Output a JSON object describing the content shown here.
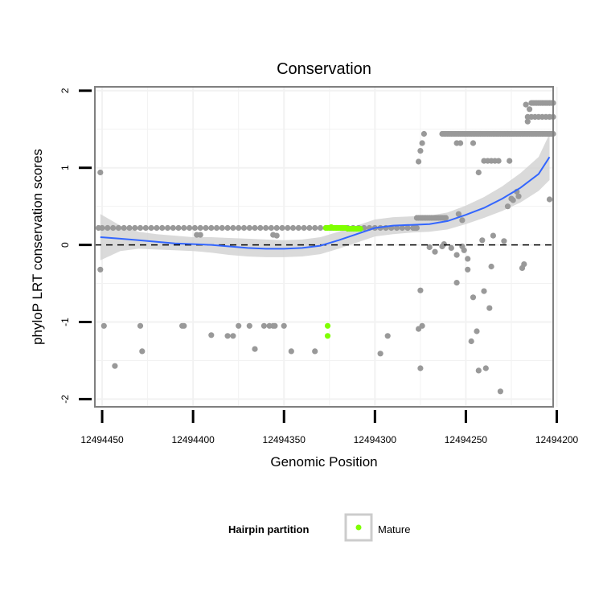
{
  "chart_data": {
    "type": "scatter",
    "title": "Conservation",
    "xlabel": "Genomic Position",
    "ylabel": "phyloP LRT conservation scores",
    "x_reversed": true,
    "xlim": [
      12494454,
      12494202
    ],
    "ylim": [
      -2.1,
      2.05
    ],
    "x_ticks": [
      12494450,
      12494400,
      12494350,
      12494300,
      12494250,
      12494200
    ],
    "x_tick_labels": [
      "12494450",
      "12494400",
      "12494350",
      "12494300",
      "12494250",
      "12494200"
    ],
    "y_ticks": [
      -2,
      -1,
      0,
      1,
      2
    ],
    "y_tick_labels": [
      "-2",
      "-1",
      "0",
      "1",
      "2"
    ],
    "grid": true,
    "reference_line": {
      "y": 0,
      "style": "dashed"
    },
    "legend": {
      "title": "Hairpin partition",
      "position": "bottom",
      "entries": [
        {
          "label": "Mature",
          "color": "#7fff00"
        }
      ]
    },
    "colors": {
      "points": "#999999",
      "mature": "#7fff00",
      "smooth": "#3366ff",
      "band": "#d3d3d3",
      "panel_border": "#7f7f7f"
    },
    "series": [
      {
        "name": "",
        "color": "#999999",
        "points": [
          [
            12494451,
            -0.32
          ],
          [
            12494451,
            0.94
          ],
          [
            12494449,
            -1.05
          ],
          [
            12494443,
            -1.57
          ],
          [
            12494429,
            -1.05
          ],
          [
            12494428,
            -1.38
          ],
          [
            12494406,
            -1.05
          ],
          [
            12494405,
            -1.05
          ],
          [
            12494390,
            -1.17
          ],
          [
            12494381,
            -1.18
          ],
          [
            12494378,
            -1.18
          ],
          [
            12494375,
            -1.05
          ],
          [
            12494369,
            -1.05
          ],
          [
            12494366,
            -1.35
          ],
          [
            12494361,
            -1.05
          ],
          [
            12494358,
            -1.05
          ],
          [
            12494356,
            -1.05
          ],
          [
            12494355,
            -1.05
          ],
          [
            12494350,
            -1.05
          ],
          [
            12494346,
            -1.38
          ],
          [
            12494333,
            -1.38
          ],
          [
            12494297,
            -1.41
          ],
          [
            12494293,
            -1.18
          ],
          [
            12494263,
            1.44
          ],
          [
            12494262,
            1.44
          ],
          [
            12494261,
            1.44
          ],
          [
            12494260,
            1.44
          ],
          [
            12494259,
            1.44
          ],
          [
            12494258,
            1.44
          ],
          [
            12494257,
            1.44
          ],
          [
            12494256,
            1.44
          ],
          [
            12494255,
            1.44
          ],
          [
            12494254,
            1.44
          ],
          [
            12494253,
            1.44
          ],
          [
            12494252,
            1.44
          ],
          [
            12494251,
            1.44
          ],
          [
            12494250,
            1.44
          ],
          [
            12494249,
            1.44
          ],
          [
            12494248,
            1.44
          ],
          [
            12494247,
            1.44
          ],
          [
            12494246,
            1.44
          ],
          [
            12494245,
            1.44
          ],
          [
            12494244,
            1.44
          ],
          [
            12494243,
            1.44
          ],
          [
            12494242,
            1.44
          ],
          [
            12494241,
            1.44
          ],
          [
            12494240,
            1.44
          ],
          [
            12494239,
            1.44
          ],
          [
            12494238,
            1.44
          ],
          [
            12494237,
            1.44
          ],
          [
            12494236,
            1.44
          ],
          [
            12494235,
            1.44
          ],
          [
            12494234,
            1.44
          ],
          [
            12494233,
            1.44
          ],
          [
            12494232,
            1.44
          ],
          [
            12494231,
            1.44
          ],
          [
            12494230,
            1.44
          ],
          [
            12494229,
            1.44
          ],
          [
            12494228,
            1.44
          ],
          [
            12494227,
            1.44
          ],
          [
            12494226,
            1.44
          ],
          [
            12494225,
            1.44
          ],
          [
            12494224,
            1.44
          ],
          [
            12494223,
            1.44
          ],
          [
            12494222,
            1.44
          ],
          [
            12494221,
            1.44
          ],
          [
            12494220,
            1.44
          ],
          [
            12494219,
            1.44
          ],
          [
            12494218,
            1.44
          ],
          [
            12494217,
            1.44
          ],
          [
            12494216,
            1.44
          ],
          [
            12494215,
            1.44
          ],
          [
            12494214,
            1.44
          ],
          [
            12494213,
            1.44
          ],
          [
            12494212,
            1.44
          ],
          [
            12494211,
            1.44
          ],
          [
            12494210,
            1.44
          ],
          [
            12494209,
            1.44
          ],
          [
            12494208,
            1.44
          ],
          [
            12494207,
            1.44
          ],
          [
            12494206,
            1.44
          ],
          [
            12494205,
            1.44
          ],
          [
            12494204,
            1.44
          ],
          [
            12494203,
            1.44
          ],
          [
            12494202,
            1.44
          ],
          [
            12494279,
            0.22
          ],
          [
            12494278,
            0.22
          ],
          [
            12494277,
            0.35
          ],
          [
            12494276,
            0.35
          ],
          [
            12494275,
            0.35
          ],
          [
            12494274,
            0.35
          ],
          [
            12494273,
            0.35
          ],
          [
            12494272,
            0.35
          ],
          [
            12494271,
            0.35
          ],
          [
            12494270,
            0.35
          ],
          [
            12494269,
            0.35
          ],
          [
            12494268,
            0.35
          ],
          [
            12494267,
            0.35
          ],
          [
            12494266,
            0.35
          ],
          [
            12494265,
            0.35
          ],
          [
            12494264,
            0.35
          ],
          [
            12494263,
            0.35
          ],
          [
            12494262,
            0.35
          ],
          [
            12494261,
            0.35
          ],
          [
            12494277,
            0.22
          ],
          [
            12494282,
            0.22
          ],
          [
            12494285,
            0.22
          ],
          [
            12494288,
            0.22
          ],
          [
            12494291,
            0.22
          ],
          [
            12494294,
            0.22
          ],
          [
            12494297,
            0.22
          ],
          [
            12494300,
            0.22
          ],
          [
            12494303,
            0.22
          ],
          [
            12494306,
            0.22
          ],
          [
            12494309,
            0.22
          ],
          [
            12494312,
            0.22
          ],
          [
            12494315,
            0.22
          ],
          [
            12494318,
            0.22
          ],
          [
            12494321,
            0.22
          ],
          [
            12494324,
            0.22
          ],
          [
            12494327,
            0.22
          ],
          [
            12494330,
            0.22
          ],
          [
            12494333,
            0.22
          ],
          [
            12494336,
            0.22
          ],
          [
            12494339,
            0.22
          ],
          [
            12494342,
            0.22
          ],
          [
            12494345,
            0.22
          ],
          [
            12494348,
            0.22
          ],
          [
            12494351,
            0.22
          ],
          [
            12494354,
            0.22
          ],
          [
            12494357,
            0.22
          ],
          [
            12494360,
            0.22
          ],
          [
            12494363,
            0.22
          ],
          [
            12494366,
            0.22
          ],
          [
            12494369,
            0.22
          ],
          [
            12494372,
            0.22
          ],
          [
            12494375,
            0.22
          ],
          [
            12494378,
            0.22
          ],
          [
            12494381,
            0.22
          ],
          [
            12494384,
            0.22
          ],
          [
            12494387,
            0.22
          ],
          [
            12494390,
            0.22
          ],
          [
            12494393,
            0.22
          ],
          [
            12494396,
            0.22
          ],
          [
            12494399,
            0.22
          ],
          [
            12494402,
            0.22
          ],
          [
            12494405,
            0.22
          ],
          [
            12494408,
            0.22
          ],
          [
            12494411,
            0.22
          ],
          [
            12494414,
            0.22
          ],
          [
            12494417,
            0.22
          ],
          [
            12494420,
            0.22
          ],
          [
            12494423,
            0.22
          ],
          [
            12494426,
            0.22
          ],
          [
            12494429,
            0.22
          ],
          [
            12494432,
            0.22
          ],
          [
            12494435,
            0.22
          ],
          [
            12494438,
            0.22
          ],
          [
            12494441,
            0.22
          ],
          [
            12494444,
            0.22
          ],
          [
            12494447,
            0.22
          ],
          [
            12494450,
            0.22
          ],
          [
            12494452,
            0.22
          ],
          [
            12494398,
            0.13
          ],
          [
            12494396,
            0.13
          ],
          [
            12494356,
            0.13
          ],
          [
            12494354,
            0.12
          ],
          [
            12494276,
            1.08
          ],
          [
            12494275,
            1.22
          ],
          [
            12494274,
            1.32
          ],
          [
            12494273,
            1.44
          ],
          [
            12494255,
            1.32
          ],
          [
            12494253,
            1.32
          ],
          [
            12494246,
            1.32
          ],
          [
            12494270,
            -0.03
          ],
          [
            12494267,
            -0.09
          ],
          [
            12494263,
            -0.02
          ],
          [
            12494262,
            0.01
          ],
          [
            12494258,
            -0.04
          ],
          [
            12494255,
            -0.13
          ],
          [
            12494255,
            -0.49
          ],
          [
            12494252,
            -0.02
          ],
          [
            12494251,
            -0.07
          ],
          [
            12494249,
            -0.18
          ],
          [
            12494249,
            -0.32
          ],
          [
            12494247,
            -1.25
          ],
          [
            12494246,
            -0.68
          ],
          [
            12494244,
            -1.12
          ],
          [
            12494243,
            -1.63
          ],
          [
            12494241,
            0.06
          ],
          [
            12494240,
            -0.6
          ],
          [
            12494239,
            -1.6
          ],
          [
            12494237,
            -0.82
          ],
          [
            12494236,
            -0.28
          ],
          [
            12494235,
            0.12
          ],
          [
            12494231,
            -1.9
          ],
          [
            12494254,
            0.4
          ],
          [
            12494252,
            0.32
          ],
          [
            12494243,
            0.94
          ],
          [
            12494240,
            1.09
          ],
          [
            12494238,
            1.09
          ],
          [
            12494236,
            1.09
          ],
          [
            12494234,
            1.09
          ],
          [
            12494232,
            1.09
          ],
          [
            12494229,
            0.05
          ],
          [
            12494227,
            0.5
          ],
          [
            12494226,
            1.09
          ],
          [
            12494225,
            0.6
          ],
          [
            12494224,
            0.58
          ],
          [
            12494222,
            0.69
          ],
          [
            12494221,
            0.63
          ],
          [
            12494219,
            -0.3
          ],
          [
            12494218,
            -0.25
          ],
          [
            12494217,
            1.82
          ],
          [
            12494216,
            1.6
          ],
          [
            12494215,
            1.76
          ],
          [
            12494214,
            1.84
          ],
          [
            12494213,
            1.84
          ],
          [
            12494212,
            1.84
          ],
          [
            12494211,
            1.84
          ],
          [
            12494210,
            1.84
          ],
          [
            12494209,
            1.84
          ],
          [
            12494208,
            1.84
          ],
          [
            12494207,
            1.84
          ],
          [
            12494206,
            1.84
          ],
          [
            12494205,
            1.84
          ],
          [
            12494204,
            1.84
          ],
          [
            12494203,
            1.84
          ],
          [
            12494202,
            1.84
          ],
          [
            12494216,
            1.66
          ],
          [
            12494214,
            1.66
          ],
          [
            12494212,
            1.66
          ],
          [
            12494210,
            1.66
          ],
          [
            12494208,
            1.66
          ],
          [
            12494206,
            1.66
          ],
          [
            12494204,
            1.66
          ],
          [
            12494202,
            1.66
          ],
          [
            12494204,
            0.59
          ],
          [
            12494275,
            -0.59
          ],
          [
            12494276,
            -1.09
          ],
          [
            12494274,
            -1.05
          ],
          [
            12494275,
            -1.6
          ]
        ]
      },
      {
        "name": "Mature",
        "color": "#7fff00",
        "points": [
          [
            12494327,
            0.22
          ],
          [
            12494326,
            0.22
          ],
          [
            12494325,
            0.22
          ],
          [
            12494324,
            0.23
          ],
          [
            12494323,
            0.22
          ],
          [
            12494322,
            0.22
          ],
          [
            12494321,
            0.22
          ],
          [
            12494320,
            0.22
          ],
          [
            12494319,
            0.22
          ],
          [
            12494318,
            0.22
          ],
          [
            12494317,
            0.22
          ],
          [
            12494316,
            0.22
          ],
          [
            12494315,
            0.21
          ],
          [
            12494314,
            0.21
          ],
          [
            12494313,
            0.21
          ],
          [
            12494312,
            0.21
          ],
          [
            12494311,
            0.21
          ],
          [
            12494310,
            0.21
          ],
          [
            12494309,
            0.21
          ],
          [
            12494308,
            0.21
          ],
          [
            12494326,
            -1.05
          ],
          [
            12494326,
            -1.18
          ]
        ]
      }
    ],
    "smooth": {
      "method": "loess",
      "x": [
        12494451,
        12494440,
        12494430,
        12494420,
        12494410,
        12494400,
        12494390,
        12494380,
        12494370,
        12494360,
        12494350,
        12494340,
        12494330,
        12494320,
        12494310,
        12494300,
        12494290,
        12494280,
        12494270,
        12494260,
        12494250,
        12494240,
        12494230,
        12494220,
        12494210,
        12494204
      ],
      "y": [
        0.1,
        0.08,
        0.06,
        0.04,
        0.02,
        0.01,
        0.0,
        -0.02,
        -0.04,
        -0.05,
        -0.05,
        -0.04,
        -0.01,
        0.06,
        0.14,
        0.22,
        0.25,
        0.26,
        0.27,
        0.31,
        0.39,
        0.48,
        0.6,
        0.74,
        0.92,
        1.14
      ],
      "lower": [
        -0.2,
        -0.08,
        -0.05,
        -0.06,
        -0.07,
        -0.08,
        -0.1,
        -0.13,
        -0.15,
        -0.16,
        -0.16,
        -0.15,
        -0.12,
        -0.05,
        0.03,
        0.11,
        0.14,
        0.16,
        0.17,
        0.2,
        0.27,
        0.35,
        0.44,
        0.55,
        0.7,
        0.84
      ],
      "upper": [
        0.4,
        0.25,
        0.17,
        0.14,
        0.12,
        0.1,
        0.1,
        0.09,
        0.08,
        0.07,
        0.06,
        0.07,
        0.1,
        0.17,
        0.25,
        0.33,
        0.36,
        0.37,
        0.38,
        0.42,
        0.51,
        0.62,
        0.76,
        0.93,
        1.14,
        1.44
      ]
    }
  }
}
